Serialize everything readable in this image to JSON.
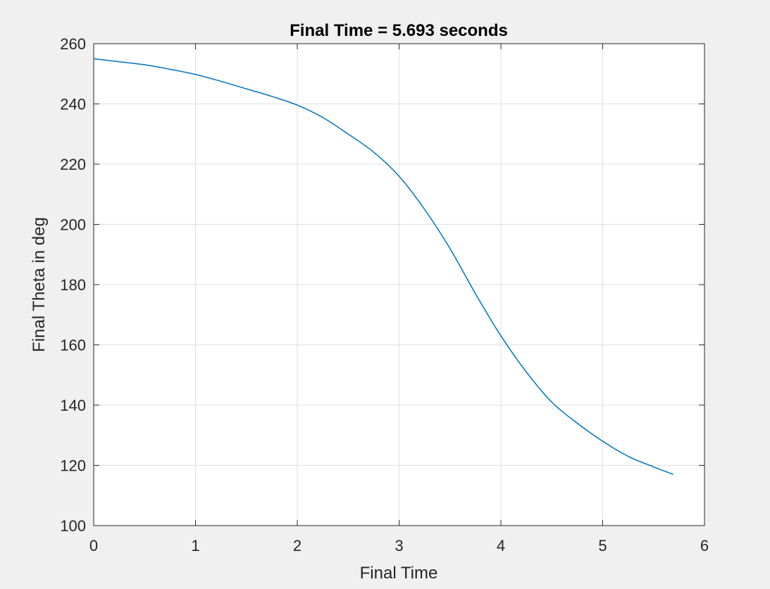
{
  "chart_data": {
    "type": "line",
    "title": "Final Time = 5.693 seconds",
    "xlabel": "Final Time",
    "ylabel": "Final Theta in deg",
    "xlim": [
      0,
      6
    ],
    "ylim": [
      100,
      260
    ],
    "xticks": [
      0,
      1,
      2,
      3,
      4,
      5,
      6
    ],
    "yticks": [
      100,
      120,
      140,
      160,
      180,
      200,
      220,
      240,
      260
    ],
    "grid": true,
    "legend": "none",
    "series": [
      {
        "color": "#0072bd",
        "x": [
          0,
          0.25,
          0.5,
          0.75,
          1.0,
          1.25,
          1.5,
          1.75,
          2.0,
          2.25,
          2.5,
          2.75,
          3.0,
          3.25,
          3.5,
          3.75,
          4.0,
          4.25,
          4.5,
          4.75,
          5.0,
          5.25,
          5.5,
          5.693
        ],
        "y": [
          255,
          254,
          253,
          251.5,
          249.8,
          247.5,
          245,
          242.5,
          239.6,
          235.5,
          230,
          224,
          216,
          205,
          192,
          177,
          163,
          151,
          141,
          134,
          128,
          123,
          119.5,
          117
        ]
      }
    ]
  },
  "colors": {
    "background": "#f0f0f0",
    "axes_background": "#ffffff",
    "grid": "#dfdfdf",
    "axis": "#262626",
    "line": "#0072bd"
  }
}
